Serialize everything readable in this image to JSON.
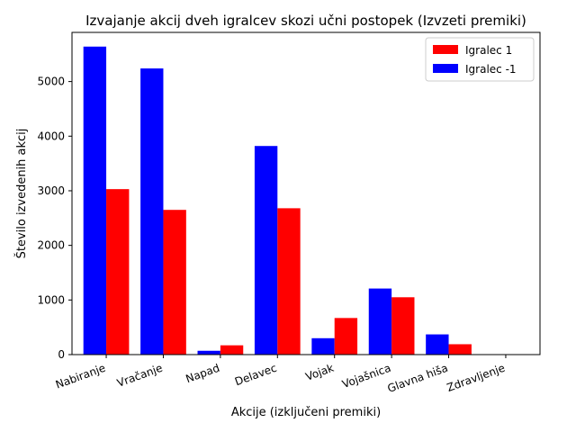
{
  "chart_data": {
    "type": "bar",
    "title": "Izvajanje akcij dveh igralcev skozi učni postopek (Izvzeti premiki)",
    "xlabel": "Akcije (izključeni premiki)",
    "ylabel": "Število izvedenih akcij",
    "categories": [
      "Nabiranje",
      "Vračanje",
      "Napad",
      "Delavec",
      "Vojak",
      "Vojašnica",
      "Glavna hiša",
      "Zdravljenje"
    ],
    "series": [
      {
        "name": "Igralec -1",
        "color": "#0000ff",
        "values": [
          5640,
          5240,
          70,
          3820,
          300,
          1210,
          370,
          0
        ]
      },
      {
        "name": "Igralec 1",
        "color": "#ff0000",
        "values": [
          3030,
          2650,
          170,
          2680,
          670,
          1050,
          190,
          0
        ]
      }
    ],
    "ylim": [
      0,
      5900
    ],
    "yticks": [
      0,
      1000,
      2000,
      3000,
      4000,
      5000
    ],
    "legend": {
      "placement": "top-right",
      "order": [
        "Igralec 1",
        "Igralec -1"
      ]
    },
    "grid": false
  }
}
